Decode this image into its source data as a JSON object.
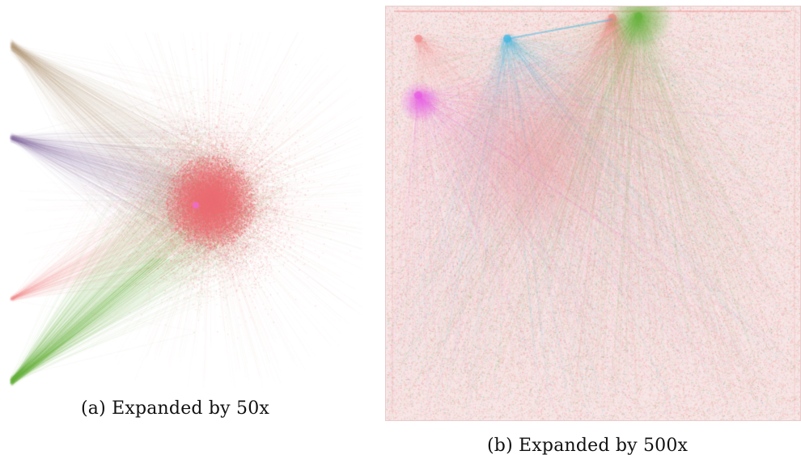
{
  "figure": {
    "panel_a": {
      "caption": "(a) Expanded by 50x"
    },
    "panel_b": {
      "caption": "(b) Expanded by 500x"
    }
  },
  "colors": {
    "dense_core": "#ee6b73",
    "salmon": "#f28c8c",
    "pink": "#f06bd6",
    "magenta": "#e65ae6",
    "cyan": "#39b7e3",
    "green": "#67b23c",
    "olive": "#7c9a3a",
    "tan": "#b49a78",
    "purple": "#8a6fa0"
  }
}
